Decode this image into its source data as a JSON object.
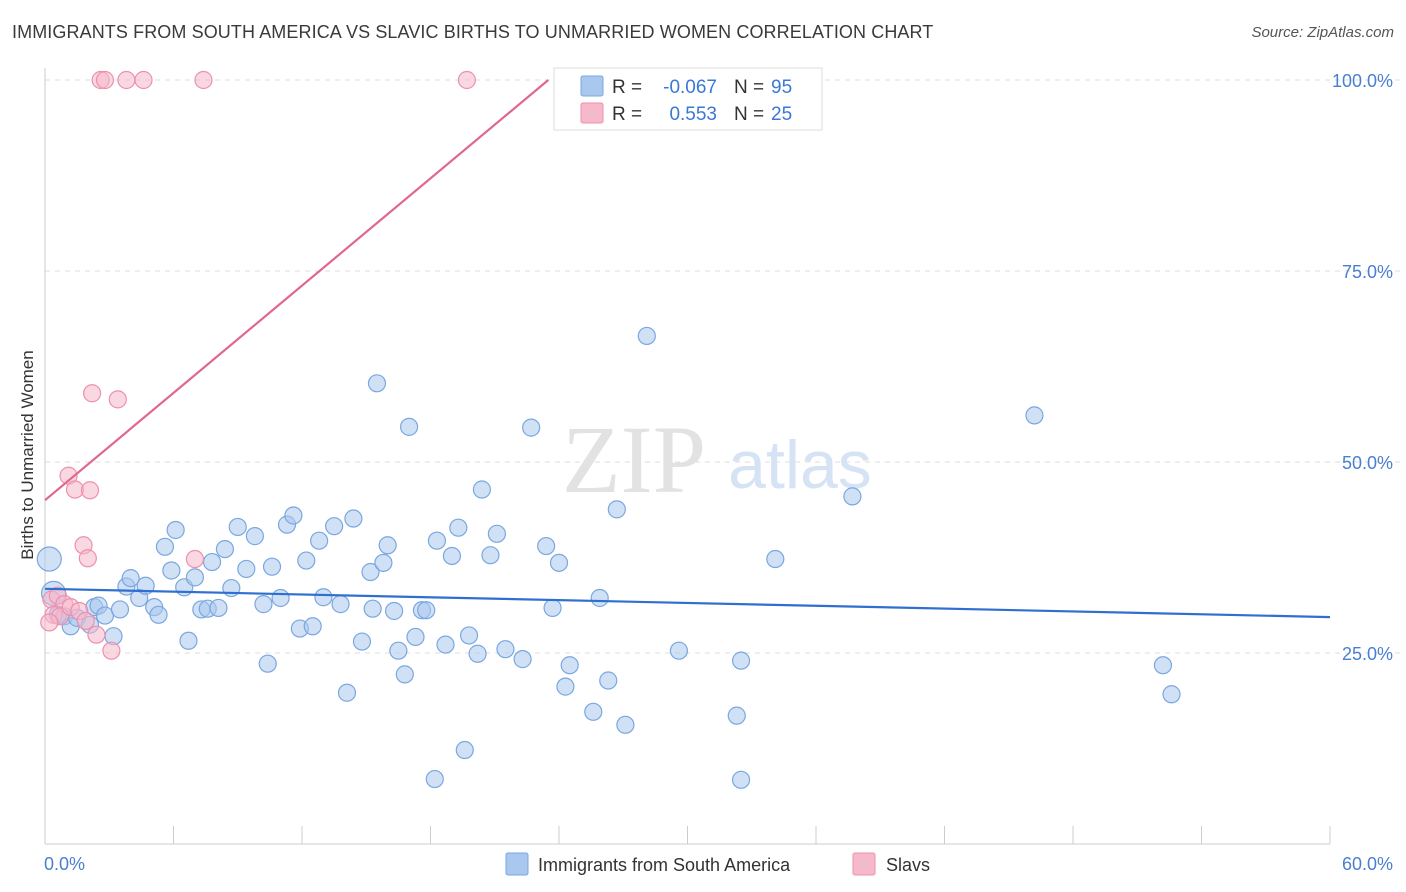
{
  "title": "IMMIGRANTS FROM SOUTH AMERICA VS SLAVIC BIRTHS TO UNMARRIED WOMEN CORRELATION CHART",
  "source": "Source: ZipAtlas.com",
  "watermark": {
    "zip": "ZIP",
    "atlas": "atlas"
  },
  "colors": {
    "blue_fill": "#a9c8ef",
    "blue_stroke": "#7aa7e0",
    "blue_line": "#2f6fd0",
    "pink_fill": "#f6b8cb",
    "pink_stroke": "#ee8fae",
    "pink_line": "#e0678f",
    "value_text": "#3a78d4",
    "grid": "#dddddd"
  },
  "legend_stats": [
    {
      "r_label": "R =",
      "r_value": "-0.067",
      "n_label": "N =",
      "n_value": "95"
    },
    {
      "r_label": "R =",
      "r_value": "0.553",
      "n_label": "N =",
      "n_value": "25"
    }
  ],
  "chart_data": {
    "type": "scatter",
    "xlabel": "",
    "ylabel": "Births to Unmarried Women",
    "xlim": [
      0,
      60
    ],
    "ylim": [
      0,
      100
    ],
    "x_tick_labels": [
      "0.0%",
      "60.0%"
    ],
    "y_tick_labels": [
      "100.0%",
      "75.0%",
      "50.0%",
      "25.0%"
    ],
    "y_tick_values": [
      100,
      75,
      50,
      25
    ],
    "grid": true,
    "legend_position": "bottom",
    "series": [
      {
        "name": "Immigrants from South America",
        "color": "#a9c8ef",
        "trend": {
          "x": [
            0,
            60
          ],
          "y": [
            33.4,
            29.7
          ]
        },
        "points": [
          [
            0.2,
            37.3
          ],
          [
            0.4,
            32.8
          ],
          [
            0.6,
            30.0
          ],
          [
            0.9,
            29.8
          ],
          [
            1.2,
            28.5
          ],
          [
            1.5,
            29.6
          ],
          [
            2.1,
            28.7
          ],
          [
            2.3,
            31.0
          ],
          [
            2.5,
            31.2
          ],
          [
            2.8,
            29.9
          ],
          [
            3.2,
            27.2
          ],
          [
            3.5,
            30.7
          ],
          [
            3.8,
            33.7
          ],
          [
            4.0,
            34.8
          ],
          [
            4.4,
            32.2
          ],
          [
            4.7,
            33.8
          ],
          [
            5.1,
            31.0
          ],
          [
            5.3,
            30.0
          ],
          [
            5.6,
            38.9
          ],
          [
            5.9,
            35.8
          ],
          [
            6.1,
            41.1
          ],
          [
            6.5,
            33.6
          ],
          [
            6.7,
            26.6
          ],
          [
            7.0,
            34.9
          ],
          [
            7.3,
            30.7
          ],
          [
            7.6,
            30.8
          ],
          [
            7.8,
            36.9
          ],
          [
            8.1,
            30.9
          ],
          [
            8.4,
            38.6
          ],
          [
            8.7,
            33.5
          ],
          [
            9.0,
            41.5
          ],
          [
            9.4,
            36.0
          ],
          [
            9.8,
            40.3
          ],
          [
            10.2,
            31.4
          ],
          [
            10.4,
            23.6
          ],
          [
            10.6,
            36.3
          ],
          [
            11.0,
            32.2
          ],
          [
            11.3,
            41.8
          ],
          [
            11.6,
            43.0
          ],
          [
            11.9,
            28.2
          ],
          [
            12.2,
            37.1
          ],
          [
            12.5,
            28.5
          ],
          [
            12.8,
            39.7
          ],
          [
            13.0,
            32.3
          ],
          [
            13.5,
            41.6
          ],
          [
            13.8,
            31.4
          ],
          [
            14.1,
            19.8
          ],
          [
            14.4,
            42.6
          ],
          [
            14.8,
            26.5
          ],
          [
            15.2,
            35.6
          ],
          [
            15.3,
            30.8
          ],
          [
            15.5,
            60.3
          ],
          [
            15.8,
            36.8
          ],
          [
            16.0,
            39.1
          ],
          [
            16.3,
            30.5
          ],
          [
            16.5,
            25.3
          ],
          [
            16.8,
            22.2
          ],
          [
            17.0,
            54.6
          ],
          [
            17.3,
            27.1
          ],
          [
            17.6,
            30.6
          ],
          [
            17.8,
            30.6
          ],
          [
            18.3,
            39.7
          ],
          [
            18.7,
            26.1
          ],
          [
            19.0,
            37.7
          ],
          [
            19.3,
            41.4
          ],
          [
            19.6,
            12.3
          ],
          [
            19.8,
            27.3
          ],
          [
            20.2,
            24.9
          ],
          [
            20.4,
            46.4
          ],
          [
            20.8,
            37.8
          ],
          [
            21.1,
            40.6
          ],
          [
            21.5,
            25.5
          ],
          [
            22.3,
            24.2
          ],
          [
            22.7,
            54.5
          ],
          [
            23.4,
            39.0
          ],
          [
            23.7,
            30.9
          ],
          [
            24.0,
            36.8
          ],
          [
            24.3,
            20.6
          ],
          [
            24.5,
            23.4
          ],
          [
            25.6,
            17.3
          ],
          [
            25.9,
            32.2
          ],
          [
            26.3,
            21.4
          ],
          [
            26.7,
            43.8
          ],
          [
            27.1,
            15.6
          ],
          [
            28.1,
            66.5
          ],
          [
            29.6,
            25.3
          ],
          [
            32.3,
            16.8
          ],
          [
            32.5,
            24.0
          ],
          [
            34.1,
            37.3
          ],
          [
            37.7,
            45.5
          ],
          [
            46.2,
            56.1
          ],
          [
            52.2,
            23.4
          ],
          [
            52.6,
            19.6
          ],
          [
            18.2,
            8.5
          ],
          [
            32.5,
            8.4
          ]
        ]
      },
      {
        "name": "Slavs",
        "color": "#f6b8cb",
        "trend": {
          "x": [
            0,
            23.5
          ],
          "y": [
            45.0,
            100.0
          ]
        },
        "points": [
          [
            2.6,
            100.0
          ],
          [
            2.8,
            100.0
          ],
          [
            3.8,
            100.0
          ],
          [
            4.6,
            100.0
          ],
          [
            7.4,
            100.0
          ],
          [
            19.7,
            100.0
          ],
          [
            2.2,
            59.0
          ],
          [
            3.4,
            58.2
          ],
          [
            1.1,
            48.2
          ],
          [
            1.4,
            46.4
          ],
          [
            2.1,
            46.3
          ],
          [
            1.8,
            39.1
          ],
          [
            2.0,
            37.4
          ],
          [
            7.0,
            37.3
          ],
          [
            0.3,
            32.0
          ],
          [
            0.6,
            32.5
          ],
          [
            0.9,
            31.4
          ],
          [
            0.4,
            30.0
          ],
          [
            0.7,
            29.8
          ],
          [
            1.2,
            31.0
          ],
          [
            1.6,
            30.5
          ],
          [
            0.2,
            29.0
          ],
          [
            1.9,
            29.2
          ],
          [
            2.4,
            27.4
          ],
          [
            3.1,
            25.3
          ]
        ]
      }
    ]
  }
}
